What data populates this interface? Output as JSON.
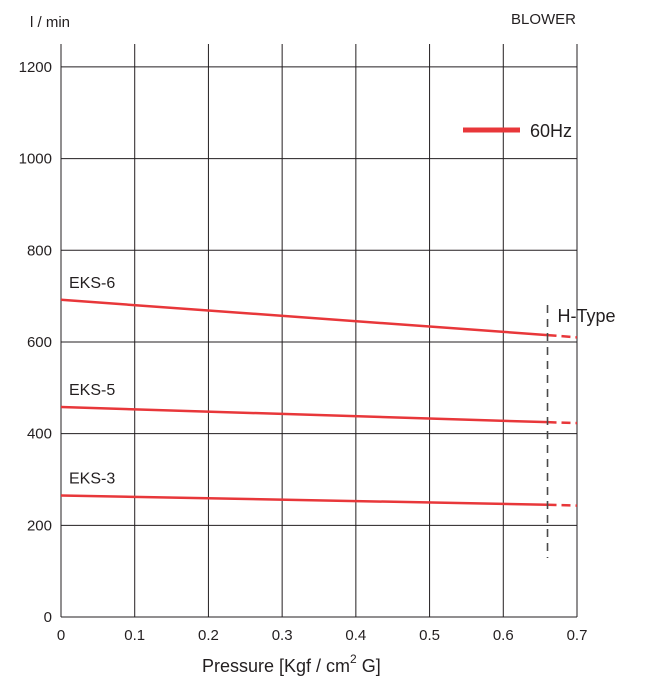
{
  "chart_data": {
    "type": "line",
    "title": "BLOWER",
    "ylabel": "l / min",
    "xlabel": "Pressure  [Kgf / cm",
    "xlabel_sup": "2",
    "xlabel_tail": " G]",
    "xlim": [
      0,
      0.7
    ],
    "ylim": [
      0,
      1250
    ],
    "x_ticks": [
      "0",
      "0.1",
      "0.2",
      "0.3",
      "0.4",
      "0.5",
      "0.6",
      "0.7"
    ],
    "y_ticks": [
      "0",
      "200",
      "400",
      "600",
      "800",
      "1000",
      "1200"
    ],
    "grid": true,
    "legend": [
      {
        "label": "60Hz",
        "color": "#e8373a",
        "position": "top-right"
      }
    ],
    "series": [
      {
        "name": "EKS-6",
        "x": [
          0,
          0.66,
          0.7
        ],
        "values": [
          692,
          615,
          610
        ],
        "dashed_from": 0.66
      },
      {
        "name": "EKS-5",
        "x": [
          0,
          0.66,
          0.7
        ],
        "values": [
          458,
          425,
          423
        ],
        "dashed_from": 0.66
      },
      {
        "name": "EKS-3",
        "x": [
          0,
          0.66,
          0.7
        ],
        "values": [
          265,
          245,
          243
        ],
        "dashed_from": 0.66
      }
    ],
    "annotations": [
      {
        "text": "H-Type",
        "x": 0.66,
        "style": "dashed-vertical"
      }
    ],
    "series_color": "#e8373a"
  }
}
